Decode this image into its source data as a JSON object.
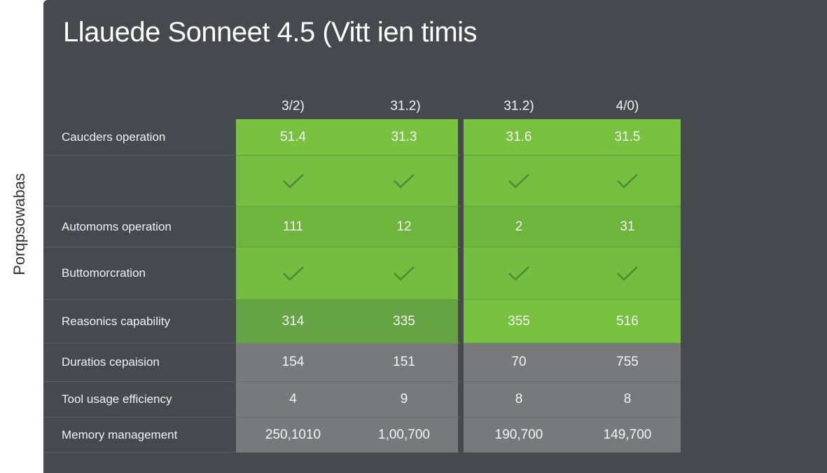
{
  "header": {
    "title": "Llauede Sonneet 4.5 (Vitt ien timis",
    "side_label": "Porqpsowabas"
  },
  "table": {
    "columns": [
      "3/2)",
      "31.2)",
      "31.2)",
      "4/0)"
    ],
    "rows": [
      {
        "label": "Caucders operation",
        "cells": [
          "51.4",
          "31.3",
          "31.6",
          "31.5"
        ]
      },
      {
        "label": null,
        "cells": [
          null,
          null,
          null,
          null
        ]
      },
      {
        "label": "Automoms operation",
        "cells": [
          "111",
          "12",
          "2",
          "31"
        ]
      },
      {
        "label": "Buttomorcration",
        "cells": [
          null,
          null,
          null,
          null
        ]
      },
      {
        "label": "Reasonics capability",
        "cells": [
          "314",
          "335",
          "355",
          "516"
        ]
      },
      {
        "label": "Duratios cepaision",
        "cells": [
          "154",
          "151",
          "70",
          "755"
        ]
      },
      {
        "label": "Tool usage efficiency",
        "cells": [
          "4",
          "9",
          "8",
          "8"
        ]
      },
      {
        "label": "Memory management",
        "cells": [
          "250,1010",
          "1,00,700",
          "190,700",
          "149,700"
        ]
      }
    ]
  }
}
